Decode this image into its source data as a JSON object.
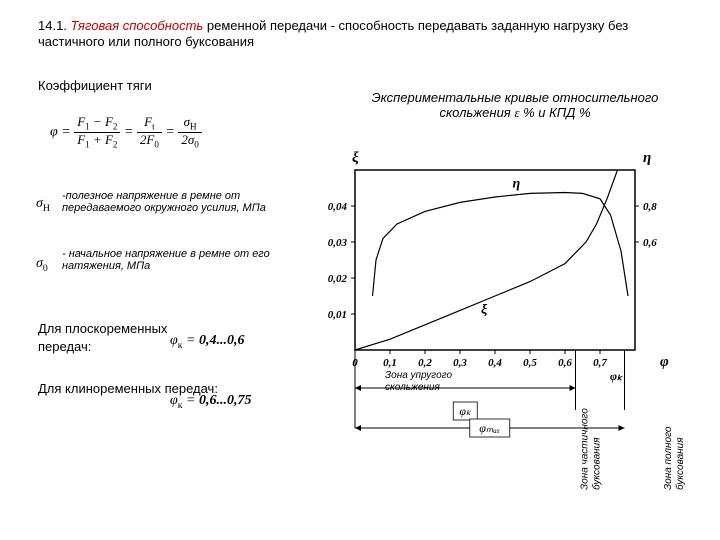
{
  "title_num": "14.1.",
  "title_em": "Тяговая способность",
  "title_rest": " ременной передачи - способность передавать заданную нагрузку без частичного или полного буксования",
  "coeff_label": "Коэффициент тяги",
  "curves_label_a": "Экспериментальные кривые относительного скольжения ",
  "curves_label_b": " %  и КПД %",
  "sigmaH_desc": "-полезное напряжение в ремне от передаваемого окружного усилия, МПа",
  "sigma0_desc": "- начальное напряжение в ремне от его натяжения, МПа",
  "flat_label": "Для плоскоременных передач:",
  "flat_range": "0,4...0,6",
  "vee_label": "Для клиноременных передач:",
  "vee_range": "0,6...0,75",
  "chart": {
    "type": "line",
    "x_axis": {
      "ticks": [
        "0",
        "0,1",
        "0,2",
        "0,3",
        "0,4",
        "0,5",
        "0,6",
        "0,7"
      ],
      "positions": [
        0,
        0.1,
        0.2,
        0.3,
        0.4,
        0.5,
        0.6,
        0.7
      ]
    },
    "y_left": {
      "label": "ξ",
      "ticks": [
        "0,01",
        "0,02",
        "0,03",
        "0,04"
      ],
      "positions": [
        0.01,
        0.02,
        0.03,
        0.04
      ],
      "max": 0.05
    },
    "y_right": {
      "label": "η",
      "ticks": [
        "0,6",
        "0,8"
      ],
      "positions": [
        0.6,
        0.8
      ],
      "max": 1.0
    },
    "x_label": "φ",
    "zone_elastic": "Зона  упругого скольжения",
    "zone_partial": "Зона частичного буксования",
    "zone_full": "Зона полного буксования",
    "phi_k": "φₖ",
    "phi_max": "φₘₐₓ",
    "phi_k_pos": 0.63,
    "phi_max_pos": 0.77,
    "xi_series": [
      [
        0,
        0
      ],
      [
        0.05,
        0.0015
      ],
      [
        0.1,
        0.003
      ],
      [
        0.2,
        0.007
      ],
      [
        0.3,
        0.011
      ],
      [
        0.4,
        0.015
      ],
      [
        0.5,
        0.019
      ],
      [
        0.6,
        0.024
      ],
      [
        0.63,
        0.027
      ],
      [
        0.66,
        0.03
      ],
      [
        0.69,
        0.035
      ],
      [
        0.72,
        0.042
      ],
      [
        0.75,
        0.05
      ]
    ],
    "eta_series": [
      [
        0.05,
        0.3
      ],
      [
        0.06,
        0.5
      ],
      [
        0.08,
        0.62
      ],
      [
        0.12,
        0.7
      ],
      [
        0.2,
        0.77
      ],
      [
        0.3,
        0.82
      ],
      [
        0.4,
        0.85
      ],
      [
        0.5,
        0.87
      ],
      [
        0.6,
        0.875
      ],
      [
        0.65,
        0.87
      ],
      [
        0.7,
        0.84
      ],
      [
        0.73,
        0.75
      ],
      [
        0.76,
        0.55
      ],
      [
        0.78,
        0.3
      ]
    ],
    "colors": {
      "axis": "#000000",
      "grid": "#000000",
      "line": "#000000",
      "background": "#ffffff"
    },
    "fontsize": 11,
    "aspect": "wide",
    "stroke_width": 1.2
  }
}
